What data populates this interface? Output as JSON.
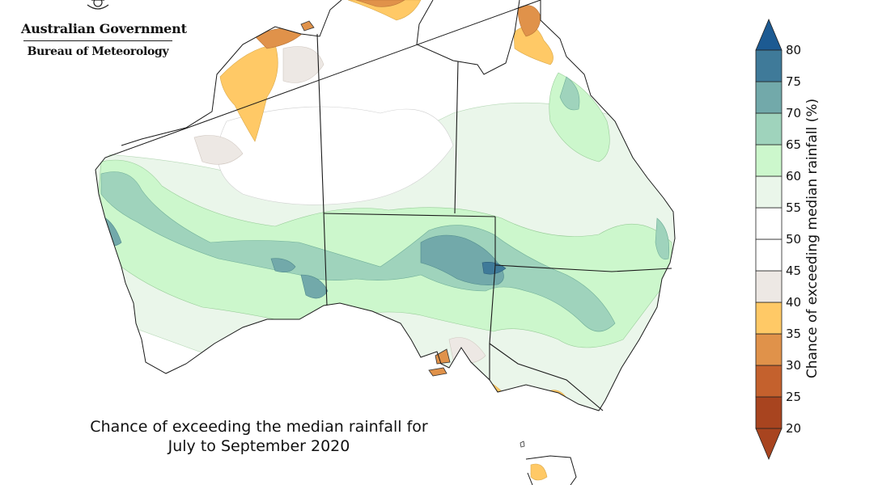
{
  "logo": {
    "government": "Australian Government",
    "bureau": "Bureau of Meteorology",
    "crest_icon": "commonwealth-coat-of-arms-icon"
  },
  "map": {
    "title_line1": "Chance of exceeding the median rainfall for",
    "title_line2": "July to September 2020"
  },
  "legend": {
    "title": "Chance of exceeding median rainfall (%)",
    "ticks": [
      "20",
      "25",
      "30",
      "35",
      "40",
      "45",
      "50",
      "55",
      "60",
      "65",
      "70",
      "75",
      "80"
    ],
    "colors": [
      "#a8441f",
      "#c4612d",
      "#e0924a",
      "#ffc966",
      "#ede8e4",
      "#ffffff",
      "#ffffff",
      "#eaf6ea",
      "#ccf7cc",
      "#9fd3bc",
      "#72a9aa",
      "#3f7a99",
      "#1c5a92"
    ],
    "bins": [
      {
        "range": "< 20",
        "color": "#a8441f"
      },
      {
        "range": "20-25",
        "color": "#a8441f"
      },
      {
        "range": "25-30",
        "color": "#c4612d"
      },
      {
        "range": "30-35",
        "color": "#e0924a"
      },
      {
        "range": "35-40",
        "color": "#ffc966"
      },
      {
        "range": "40-45",
        "color": "#ede8e4"
      },
      {
        "range": "45-50",
        "color": "#ffffff"
      },
      {
        "range": "50-55",
        "color": "#ffffff"
      },
      {
        "range": "55-60",
        "color": "#eaf6ea"
      },
      {
        "range": "60-65",
        "color": "#ccf7cc"
      },
      {
        "range": "65-70",
        "color": "#9fd3bc"
      },
      {
        "range": "70-75",
        "color": "#72a9aa"
      },
      {
        "range": "75-80",
        "color": "#3f7a99"
      },
      {
        "range": "> 80",
        "color": "#1c5a92"
      }
    ]
  }
}
